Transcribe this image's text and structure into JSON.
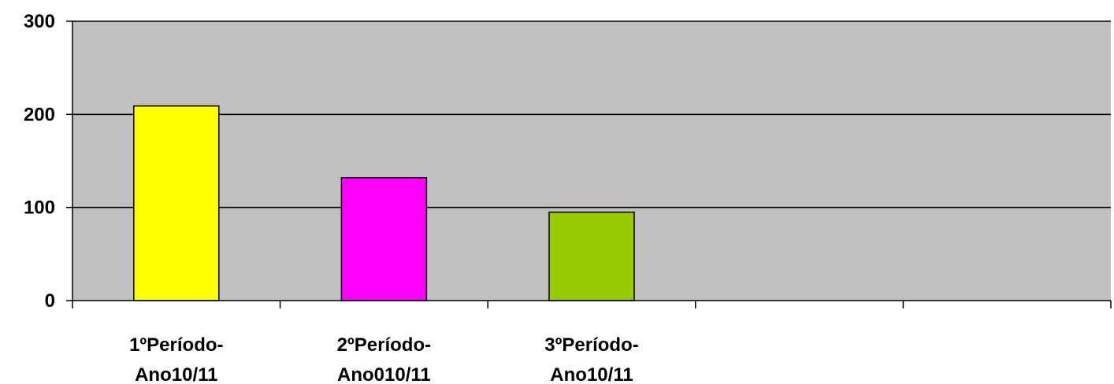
{
  "chart_data": {
    "type": "bar",
    "categories": [
      [
        "1ºPeríodo-",
        "Ano10/11"
      ],
      [
        "2ºPeríodo-",
        "Ano010/11"
      ],
      [
        "3ºPeríodo-",
        "Ano10/11"
      ],
      [
        "",
        ""
      ],
      [
        "",
        ""
      ]
    ],
    "values": [
      209,
      132,
      95,
      null,
      null
    ],
    "bar_colors": [
      "#ffff00",
      "#ff00ff",
      "#99cc00"
    ],
    "plot_background": "#c0c0c0",
    "gridline_color": "#000000",
    "yticks": [
      "0",
      "100",
      "200",
      "300"
    ],
    "ylim": [
      0,
      300
    ],
    "grid": true,
    "legend": false
  }
}
